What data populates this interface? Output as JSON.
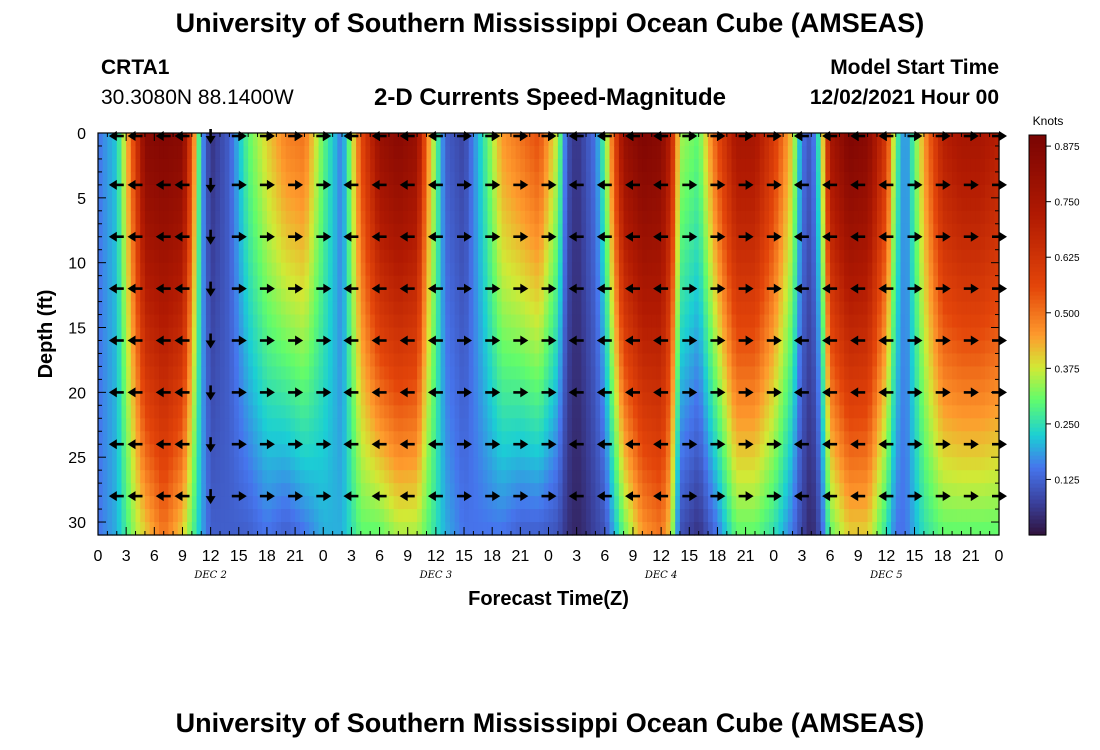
{
  "page": {
    "title_top": "University of Southern Mississippi Ocean Cube (AMSEAS)",
    "title_bottom": "University of Southern Mississippi Ocean Cube (AMSEAS)"
  },
  "header": {
    "station": "CRTA1",
    "coords": "30.3080N  88.1400W",
    "subtitle": "2-D Currents Speed-Magnitude",
    "model_start_label": "Model Start Time",
    "model_start_date": "12/02/2021 Hour 00"
  },
  "chart_data": {
    "type": "heatmap",
    "title": "2-D Currents Speed-Magnitude",
    "xlabel": "Forecast Time(Z)",
    "ylabel": "Depth (ft)",
    "xlim": [
      0,
      96
    ],
    "ylim": [
      0,
      31
    ],
    "x_tick_values": [
      0,
      3,
      6,
      9,
      12,
      15,
      18,
      21,
      24,
      27,
      30,
      33,
      36,
      39,
      42,
      45,
      48,
      51,
      54,
      57,
      60,
      63,
      66,
      69,
      72,
      75,
      78,
      81,
      84,
      87,
      90,
      93,
      96
    ],
    "x_tick_labels": [
      "0",
      "3",
      "6",
      "9",
      "12",
      "15",
      "18",
      "21",
      "0",
      "3",
      "6",
      "9",
      "12",
      "15",
      "18",
      "21",
      "0",
      "3",
      "6",
      "9",
      "12",
      "15",
      "18",
      "21",
      "0",
      "3",
      "6",
      "9",
      "12",
      "15",
      "18",
      "21",
      "0"
    ],
    "day_labels": [
      {
        "label": "DEC 2",
        "x": 12
      },
      {
        "label": "DEC 3",
        "x": 36
      },
      {
        "label": "DEC 4",
        "x": 60
      },
      {
        "label": "DEC 5",
        "x": 84
      }
    ],
    "y_ticks": [
      0,
      5,
      10,
      15,
      20,
      25,
      30
    ],
    "colorbar": {
      "unit": "Knots",
      "min": 0.0,
      "max": 0.9,
      "tick_values": [
        0.875,
        0.75,
        0.625,
        0.5,
        0.375,
        0.25,
        0.125
      ],
      "tick_labels": [
        "0.875",
        "0.750",
        "0.625",
        "0.500",
        "0.375",
        "0.250",
        "0.125"
      ]
    },
    "arrow_depths": [
      4,
      8,
      12,
      16,
      20,
      24,
      28
    ],
    "speed_profile": {
      "hours": [
        0,
        2,
        4,
        5,
        7,
        9,
        10,
        11,
        12,
        14,
        16,
        18,
        20,
        22,
        24,
        26,
        28,
        30,
        32,
        34,
        35,
        37,
        39,
        41,
        43,
        45,
        47,
        49,
        50,
        51,
        52,
        53,
        54,
        56,
        58,
        60,
        61,
        62,
        64,
        66,
        68,
        70,
        72,
        74,
        75,
        76,
        77,
        78,
        80,
        82,
        84,
        85,
        86,
        88,
        90,
        92,
        94,
        96
      ],
      "surface_knots": [
        0.15,
        0.22,
        0.6,
        0.85,
        0.87,
        0.85,
        0.55,
        0.2,
        0.05,
        0.12,
        0.3,
        0.4,
        0.48,
        0.5,
        0.3,
        0.15,
        0.55,
        0.8,
        0.85,
        0.8,
        0.5,
        0.12,
        0.08,
        0.25,
        0.45,
        0.5,
        0.55,
        0.35,
        0.1,
        0.05,
        0.1,
        0.15,
        0.3,
        0.8,
        0.88,
        0.85,
        0.7,
        0.35,
        0.3,
        0.55,
        0.75,
        0.75,
        0.6,
        0.4,
        0.15,
        0.1,
        0.3,
        0.75,
        0.88,
        0.85,
        0.6,
        0.3,
        0.15,
        0.45,
        0.7,
        0.75,
        0.75,
        0.7
      ],
      "bottom_knots": [
        0.15,
        0.2,
        0.35,
        0.4,
        0.5,
        0.4,
        0.3,
        0.2,
        0.12,
        0.12,
        0.12,
        0.15,
        0.12,
        0.15,
        0.2,
        0.2,
        0.3,
        0.3,
        0.35,
        0.35,
        0.3,
        0.2,
        0.15,
        0.15,
        0.15,
        0.12,
        0.12,
        0.1,
        0.05,
        0.03,
        0.05,
        0.08,
        0.1,
        0.3,
        0.45,
        0.5,
        0.4,
        0.1,
        0.05,
        0.15,
        0.3,
        0.3,
        0.25,
        0.15,
        0.08,
        0.03,
        0.1,
        0.3,
        0.4,
        0.4,
        0.25,
        0.15,
        0.15,
        0.25,
        0.3,
        0.3,
        0.3,
        0.3
      ]
    },
    "arrow_directions": {
      "hours": [
        2,
        4,
        7,
        9,
        12,
        15,
        18,
        21,
        24,
        27,
        30,
        33,
        36,
        39,
        42,
        45,
        48,
        51,
        54,
        57,
        60,
        63,
        66,
        69,
        72,
        75,
        78,
        81,
        84,
        87,
        90,
        93,
        96
      ],
      "direction": [
        "W",
        "W",
        "W",
        "W",
        "S",
        "E",
        "E",
        "E",
        "E",
        "W",
        "W",
        "W",
        "W",
        "E",
        "E",
        "E",
        "E",
        "W",
        "W",
        "W",
        "W",
        "E",
        "E",
        "E",
        "E",
        "W",
        "W",
        "W",
        "W",
        "E",
        "E",
        "E",
        "E"
      ]
    }
  }
}
